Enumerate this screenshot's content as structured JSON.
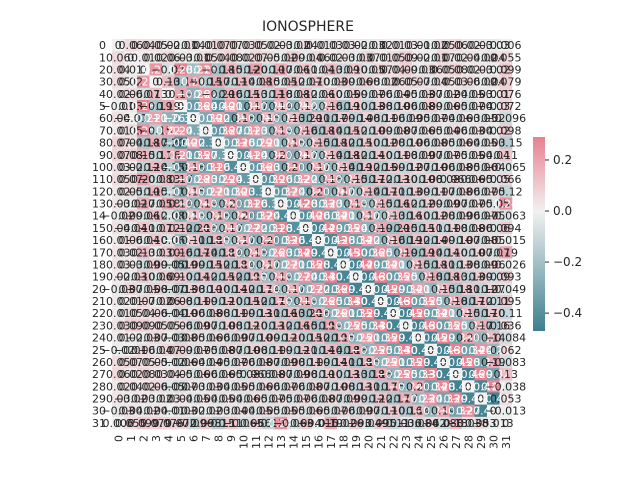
{
  "chart_data": {
    "type": "heatmap",
    "title": "IONOSPHERE",
    "xlabel": "",
    "ylabel": "",
    "row_labels": [
      "0",
      "1",
      "2",
      "3",
      "4",
      "5",
      "6",
      "7",
      "8",
      "9",
      "10",
      "11",
      "12",
      "13",
      "14",
      "15",
      "16",
      "17",
      "18",
      "19",
      "20",
      "21",
      "22",
      "23",
      "24",
      "25",
      "26",
      "27",
      "28",
      "29",
      "30",
      "31"
    ],
    "col_labels": [
      "0",
      "1",
      "2",
      "3",
      "4",
      "5",
      "6",
      "7",
      "8",
      "9",
      "10",
      "11",
      "12",
      "13",
      "14",
      "15",
      "16",
      "17",
      "18",
      "19",
      "20",
      "21",
      "22",
      "23",
      "24",
      "25",
      "26",
      "27",
      "28",
      "29",
      "30",
      "31"
    ],
    "annotated": true,
    "annotation_precision": 2,
    "colormap": [
      "#3d7f8f",
      "#f1f1f1",
      "#e8808f"
    ],
    "vmin": -0.47,
    "vmax": 0.29,
    "colorbar_ticks": [
      0.2,
      0.0,
      -0.2,
      -0.4
    ],
    "colorbar_tick_labels": [
      "0.2",
      "0.0",
      "−0.2",
      "−0.4"
    ],
    "values": [
      [
        0.0,
        0.06,
        0.04,
        0.05,
        0.02,
        -0.01,
        0.04,
        0.01,
        0.07,
        0.07,
        0.03,
        0.05,
        0.02,
        0.03,
        -0.02,
        0.04,
        0.01,
        0.03,
        0.03,
        0.02,
        -0.03,
        0.02,
        0.01,
        0.03,
        0.01,
        -0.02,
        0.05,
        0.06,
        0.02,
        0.03,
        -0.03,
        0.006
      ],
      [
        0.06,
        0.0,
        0.01,
        0.02,
        0.06,
        0.03,
        -0.01,
        0.05,
        0.04,
        0.08,
        0.02,
        0.07,
        0.05,
        -0.02,
        0.09,
        -0.04,
        0.06,
        0.02,
        0.03,
        -0.03,
        0.07,
        0.01,
        0.05,
        0.09,
        0.02,
        -0.01,
        0.07,
        0.02,
        0.04,
        -0.02,
        0.04,
        0.055
      ],
      [
        0.04,
        0.01,
        0.0,
        0.23,
        -0.07,
        0.28,
        -0.21,
        0.25,
        -0.18,
        0.15,
        -0.12,
        0.2,
        -0.1,
        0.17,
        -0.06,
        0.11,
        -0.04,
        0.13,
        -0.09,
        0.1,
        -0.05,
        0.07,
        0.04,
        0.09,
        -0.03,
        0.06,
        0.05,
        0.08,
        0.02,
        0.03,
        -0.02,
        0.099
      ],
      [
        0.05,
        0.02,
        0.23,
        0.0,
        0.13,
        -0.19,
        0.21,
        -0.15,
        0.17,
        -0.11,
        0.14,
        -0.08,
        0.15,
        -0.05,
        0.12,
        -0.07,
        0.1,
        -0.03,
        0.09,
        -0.06,
        0.08,
        -0.02,
        0.06,
        0.05,
        0.07,
        -0.04,
        0.05,
        0.03,
        0.06,
        -0.02,
        0.04,
        0.079
      ],
      [
        0.02,
        0.06,
        -0.07,
        0.13,
        0.0,
        0.19,
        -0.26,
        0.22,
        -0.2,
        0.16,
        -0.15,
        0.13,
        -0.11,
        0.18,
        -0.08,
        0.12,
        -0.06,
        0.1,
        -0.05,
        0.09,
        -0.07,
        0.06,
        -0.04,
        0.05,
        -0.03,
        0.07,
        -0.02,
        0.04,
        -0.05,
        0.03,
        -0.01,
        0.076
      ],
      [
        -0.01,
        0.03,
        0.28,
        -0.19,
        0.19,
        0.0,
        -0.36,
        0.24,
        -0.4,
        0.21,
        -0.33,
        0.17,
        -0.29,
        0.14,
        -0.25,
        0.12,
        -0.21,
        0.16,
        -0.19,
        0.1,
        -0.13,
        0.08,
        -0.1,
        0.06,
        -0.08,
        0.09,
        -0.06,
        0.05,
        -0.07,
        0.04,
        -0.03,
        0.072
      ],
      [
        0.04,
        -0.01,
        -0.21,
        0.21,
        -0.26,
        -0.36,
        0.0,
        -0.3,
        0.22,
        -0.35,
        0.18,
        -0.28,
        0.15,
        -0.24,
        0.13,
        -0.2,
        0.11,
        -0.17,
        0.09,
        -0.14,
        0.08,
        -0.11,
        0.06,
        -0.09,
        0.05,
        -0.07,
        0.04,
        -0.06,
        0.03,
        -0.05,
        0.02,
        -0.096
      ],
      [
        0.01,
        0.05,
        0.25,
        -0.15,
        0.22,
        0.24,
        -0.3,
        0.0,
        -0.38,
        0.27,
        -0.31,
        0.23,
        -0.27,
        0.19,
        -0.22,
        0.16,
        -0.18,
        0.14,
        -0.15,
        0.12,
        -0.1,
        0.09,
        -0.08,
        0.07,
        -0.06,
        0.05,
        -0.04,
        0.06,
        -0.03,
        0.04,
        -0.02,
        0.098
      ],
      [
        0.07,
        0.04,
        -0.18,
        0.17,
        -0.2,
        -0.4,
        0.22,
        -0.38,
        0.0,
        -0.33,
        0.26,
        -0.29,
        0.21,
        -0.25,
        0.18,
        -0.21,
        0.15,
        -0.18,
        0.12,
        -0.15,
        0.1,
        -0.12,
        0.08,
        -0.1,
        0.06,
        -0.08,
        0.05,
        -0.06,
        0.04,
        -0.05,
        0.03,
        -0.15
      ],
      [
        0.07,
        0.08,
        0.15,
        -0.11,
        0.16,
        0.21,
        -0.35,
        0.27,
        -0.33,
        0.0,
        -0.41,
        0.24,
        -0.3,
        0.2,
        -0.26,
        0.17,
        -0.22,
        0.14,
        -0.18,
        0.12,
        -0.14,
        0.1,
        -0.11,
        0.08,
        -0.09,
        0.07,
        -0.07,
        0.05,
        -0.05,
        0.04,
        -0.04,
        0.11
      ],
      [
        0.03,
        0.02,
        -0.12,
        0.14,
        -0.15,
        -0.33,
        0.18,
        -0.31,
        0.26,
        -0.41,
        0.0,
        -0.36,
        0.23,
        -0.31,
        0.2,
        -0.27,
        0.17,
        -0.23,
        0.14,
        -0.19,
        0.12,
        -0.15,
        0.09,
        -0.12,
        0.07,
        -0.1,
        0.06,
        -0.08,
        0.05,
        -0.06,
        0.04,
        -0.065
      ],
      [
        0.05,
        0.07,
        0.2,
        -0.08,
        0.13,
        0.17,
        -0.28,
        0.23,
        -0.29,
        0.24,
        -0.36,
        0.0,
        -0.39,
        0.26,
        -0.32,
        0.22,
        -0.27,
        0.18,
        -0.22,
        0.15,
        -0.17,
        0.12,
        -0.13,
        0.1,
        -0.1,
        0.08,
        -0.08,
        0.066,
        -0.06,
        0.05,
        -0.05,
        0.066
      ],
      [
        0.02,
        0.05,
        -0.1,
        0.15,
        -0.11,
        -0.29,
        0.15,
        -0.27,
        0.21,
        -0.3,
        0.23,
        -0.39,
        0.0,
        -0.37,
        0.24,
        -0.31,
        0.2,
        -0.26,
        0.17,
        -0.21,
        0.14,
        -0.17,
        0.11,
        -0.13,
        0.09,
        -0.11,
        0.07,
        -0.08,
        0.06,
        -0.07,
        0.05,
        -0.12
      ],
      [
        0.03,
        -0.02,
        0.17,
        -0.05,
        0.18,
        0.14,
        -0.24,
        0.19,
        -0.25,
        0.2,
        -0.31,
        0.26,
        -0.37,
        0.0,
        -0.42,
        0.28,
        -0.33,
        0.23,
        -0.27,
        0.19,
        -0.21,
        0.15,
        -0.16,
        0.12,
        -0.12,
        0.09,
        -0.09,
        0.07,
        -0.07,
        0.05,
        -0.05,
        0.24
      ],
      [
        -0.02,
        0.09,
        -0.06,
        0.12,
        -0.08,
        -0.25,
        0.13,
        -0.22,
        0.18,
        -0.26,
        0.2,
        -0.32,
        0.24,
        -0.42,
        0.0,
        -0.4,
        0.26,
        -0.34,
        0.21,
        -0.27,
        0.17,
        -0.21,
        0.13,
        -0.16,
        0.1,
        -0.12,
        0.08,
        -0.09,
        0.06,
        -0.07,
        0.05,
        -0.063
      ],
      [
        0.04,
        -0.04,
        0.11,
        -0.07,
        0.12,
        0.12,
        -0.2,
        0.16,
        -0.21,
        0.17,
        -0.27,
        0.22,
        -0.31,
        0.28,
        -0.4,
        0.0,
        -0.44,
        0.29,
        -0.35,
        0.24,
        -0.27,
        0.19,
        -0.2,
        0.15,
        -0.15,
        0.11,
        -0.11,
        0.08,
        -0.08,
        0.06,
        -0.06,
        0.094
      ],
      [
        0.01,
        0.06,
        -0.04,
        0.1,
        -0.06,
        -0.21,
        0.11,
        -0.18,
        0.15,
        -0.22,
        0.17,
        -0.27,
        0.2,
        -0.33,
        0.26,
        -0.44,
        0.0,
        -0.43,
        0.28,
        -0.34,
        0.22,
        -0.26,
        0.16,
        -0.19,
        0.12,
        -0.14,
        0.09,
        -0.1,
        0.07,
        -0.08,
        0.05,
        -0.015
      ],
      [
        0.03,
        0.02,
        0.13,
        -0.03,
        0.1,
        0.16,
        -0.17,
        0.14,
        -0.18,
        0.14,
        -0.23,
        0.18,
        -0.26,
        0.23,
        -0.34,
        0.29,
        -0.43,
        0.0,
        -0.45,
        0.3,
        -0.36,
        0.25,
        -0.26,
        0.19,
        -0.19,
        0.14,
        -0.14,
        0.1,
        -0.1,
        0.07,
        -0.07,
        0.19
      ],
      [
        0.03,
        0.03,
        -0.09,
        0.09,
        -0.05,
        -0.19,
        0.09,
        -0.15,
        0.12,
        -0.18,
        0.14,
        -0.22,
        0.17,
        -0.27,
        0.21,
        -0.35,
        0.28,
        -0.45,
        0.0,
        -0.44,
        0.29,
        -0.34,
        0.21,
        -0.25,
        0.15,
        -0.18,
        0.11,
        -0.13,
        0.08,
        -0.09,
        0.06,
        -0.026
      ],
      [
        0.02,
        -0.03,
        0.1,
        -0.06,
        0.09,
        0.1,
        -0.14,
        0.12,
        -0.15,
        0.12,
        -0.19,
        0.15,
        -0.21,
        0.19,
        -0.27,
        0.24,
        -0.34,
        0.3,
        -0.44,
        0.0,
        -0.46,
        0.3,
        -0.35,
        0.25,
        -0.25,
        0.18,
        -0.18,
        0.13,
        -0.13,
        0.09,
        -0.09,
        0.093
      ],
      [
        -0.03,
        0.07,
        -0.05,
        0.08,
        -0.07,
        -0.13,
        0.08,
        -0.1,
        0.1,
        -0.14,
        0.12,
        -0.17,
        0.14,
        -0.21,
        0.17,
        -0.27,
        0.22,
        -0.36,
        0.29,
        -0.46,
        0.0,
        -0.45,
        0.29,
        -0.34,
        0.21,
        -0.25,
        0.15,
        -0.18,
        0.11,
        -0.12,
        0.07,
        -0.049
      ],
      [
        0.02,
        0.01,
        0.07,
        -0.02,
        0.06,
        0.08,
        -0.11,
        0.09,
        -0.12,
        0.1,
        -0.15,
        0.12,
        -0.17,
        0.15,
        -0.21,
        0.19,
        -0.26,
        0.25,
        -0.34,
        0.3,
        -0.45,
        0.0,
        -0.46,
        0.3,
        -0.35,
        0.25,
        -0.25,
        0.18,
        -0.17,
        0.12,
        -0.11,
        0.095
      ],
      [
        0.01,
        0.05,
        0.04,
        0.06,
        -0.04,
        -0.1,
        0.06,
        -0.08,
        0.08,
        -0.11,
        0.09,
        -0.13,
        0.11,
        -0.16,
        0.13,
        -0.2,
        0.16,
        -0.26,
        0.21,
        -0.35,
        0.29,
        -0.46,
        0.0,
        -0.45,
        0.29,
        -0.34,
        0.21,
        -0.25,
        0.15,
        -0.17,
        0.1,
        -0.11
      ],
      [
        0.03,
        0.09,
        0.09,
        0.05,
        0.05,
        0.06,
        -0.09,
        0.07,
        -0.1,
        0.08,
        -0.12,
        0.1,
        -0.13,
        0.12,
        -0.16,
        0.15,
        -0.19,
        0.19,
        -0.25,
        0.25,
        -0.34,
        0.3,
        -0.45,
        0.0,
        -0.46,
        0.3,
        -0.35,
        0.25,
        -0.24,
        0.17,
        -0.16,
        0.036
      ],
      [
        0.01,
        0.02,
        -0.03,
        0.07,
        -0.03,
        -0.08,
        0.05,
        -0.06,
        0.06,
        -0.09,
        0.07,
        -0.1,
        0.09,
        -0.12,
        0.1,
        -0.15,
        0.12,
        -0.19,
        0.15,
        -0.25,
        0.21,
        -0.35,
        0.29,
        -0.46,
        0.0,
        -0.45,
        0.29,
        -0.33,
        0.2,
        -0.23,
        0.14,
        -0.084
      ],
      [
        -0.02,
        -0.01,
        0.06,
        -0.04,
        0.07,
        0.09,
        -0.07,
        0.05,
        -0.08,
        0.07,
        -0.1,
        0.08,
        -0.11,
        0.09,
        -0.12,
        0.11,
        -0.14,
        0.14,
        -0.18,
        0.18,
        -0.25,
        0.25,
        -0.34,
        0.3,
        -0.45,
        0.0,
        -0.46,
        0.3,
        -0.34,
        0.24,
        -0.23,
        0.062
      ],
      [
        0.05,
        0.07,
        0.05,
        0.05,
        -0.02,
        -0.06,
        0.04,
        -0.04,
        0.05,
        -0.07,
        0.06,
        -0.08,
        0.07,
        -0.09,
        0.08,
        -0.11,
        0.09,
        -0.14,
        0.11,
        -0.18,
        0.15,
        -0.25,
        0.21,
        -0.35,
        0.29,
        -0.46,
        0.0,
        -0.45,
        0.28,
        -0.33,
        0.19,
        -0.083
      ],
      [
        0.06,
        0.02,
        0.08,
        0.03,
        0.04,
        0.05,
        -0.06,
        0.06,
        -0.06,
        0.05,
        -0.08,
        0.066,
        -0.08,
        0.07,
        -0.09,
        0.08,
        -0.1,
        0.1,
        -0.13,
        0.13,
        -0.18,
        0.18,
        -0.25,
        0.25,
        -0.33,
        0.3,
        -0.45,
        0.0,
        -0.46,
        0.29,
        -0.32,
        0.13
      ],
      [
        0.02,
        0.04,
        0.02,
        0.06,
        -0.05,
        -0.07,
        0.03,
        -0.03,
        0.04,
        -0.05,
        0.05,
        -0.06,
        0.06,
        -0.07,
        0.06,
        -0.08,
        0.07,
        -0.1,
        0.08,
        -0.13,
        0.11,
        -0.17,
        0.15,
        -0.24,
        0.2,
        -0.34,
        0.28,
        -0.46,
        0.0,
        -0.44,
        0.27,
        -0.038
      ],
      [
        0.03,
        -0.02,
        0.03,
        -0.02,
        0.03,
        0.04,
        -0.05,
        0.04,
        -0.05,
        0.04,
        -0.06,
        0.05,
        -0.07,
        0.05,
        -0.07,
        0.06,
        -0.08,
        0.07,
        -0.09,
        0.09,
        -0.12,
        0.12,
        -0.17,
        0.17,
        -0.23,
        0.24,
        -0.33,
        0.29,
        -0.44,
        0.0,
        -0.45,
        0.053
      ],
      [
        -0.03,
        0.04,
        -0.02,
        0.04,
        -0.01,
        -0.03,
        0.02,
        -0.02,
        0.03,
        -0.04,
        0.04,
        -0.05,
        0.05,
        -0.05,
        0.05,
        -0.06,
        0.05,
        -0.07,
        0.06,
        -0.09,
        0.07,
        -0.11,
        0.1,
        -0.16,
        0.14,
        -0.23,
        0.19,
        -0.32,
        0.27,
        -0.45,
        0.0,
        -0.013
      ],
      [
        0.006,
        0.055,
        0.099,
        0.079,
        0.076,
        0.072,
        -0.096,
        0.098,
        -0.15,
        0.11,
        -0.065,
        0.066,
        -0.12,
        0.24,
        -0.063,
        0.094,
        -0.015,
        0.19,
        -0.026,
        0.093,
        -0.049,
        0.095,
        -0.11,
        0.036,
        -0.084,
        0.062,
        -0.083,
        0.13,
        -0.038,
        0.053,
        -0.013,
        0.0
      ]
    ]
  }
}
